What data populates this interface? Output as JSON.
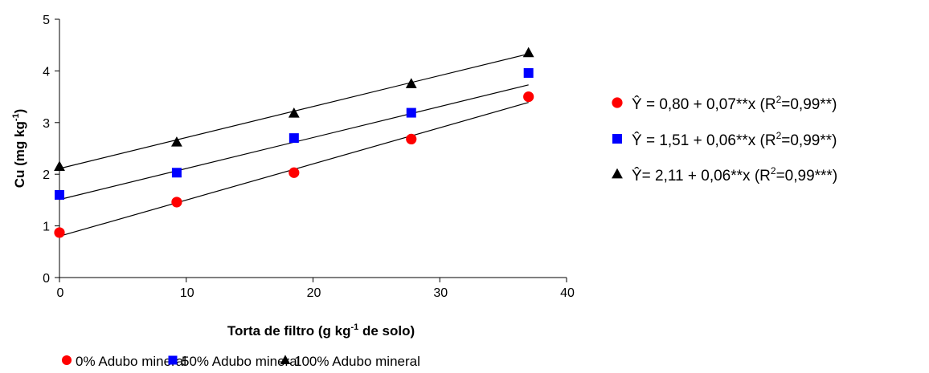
{
  "chart_data": {
    "type": "scatter",
    "xlabel": "Torta de filtro (g kg",
    "xlabel_sup": "-1",
    "xlabel_tail": " de solo)",
    "ylabel": "Cu (mg kg",
    "ylabel_sup": "-1",
    "ylabel_tail": ")",
    "xlim": [
      0,
      40
    ],
    "ylim": [
      0,
      5
    ],
    "xticks": [
      0,
      10,
      20,
      30,
      40
    ],
    "yticks": [
      0,
      1,
      2,
      3,
      4,
      5
    ],
    "x": [
      0,
      9.25,
      18.5,
      27.75,
      37
    ],
    "series": [
      {
        "name": "0% Adubo mineral",
        "marker": "circle",
        "color": "#ff0000",
        "values": [
          0.87,
          1.46,
          2.03,
          2.68,
          3.5
        ],
        "fit": {
          "intercept": 0.8,
          "slope": 0.07,
          "equation_parts": [
            "Ŷ = 0,80 + 0,07**x (R",
            "2",
            "=0,99**)"
          ]
        }
      },
      {
        "name": "50% Adubo mineral",
        "marker": "square",
        "color": "#0000ff",
        "values": [
          1.6,
          2.03,
          2.7,
          3.19,
          3.96
        ],
        "fit": {
          "intercept": 1.51,
          "slope": 0.06,
          "equation_parts": [
            "Ŷ = 1,51 + 0,06**x (R",
            "2",
            "=0,99**)"
          ]
        }
      },
      {
        "name": "100% Adubo mineral",
        "marker": "triangle",
        "color": "#000000",
        "values": [
          2.15,
          2.62,
          3.18,
          3.75,
          4.35
        ],
        "fit": {
          "intercept": 2.11,
          "slope": 0.06,
          "equation_parts": [
            "Ŷ= 2,11 + 0,06**x (R",
            "2",
            "=0,99***)"
          ]
        }
      }
    ],
    "grid": false,
    "legend_bottom": "bottom-center",
    "legend_equations": "right"
  }
}
